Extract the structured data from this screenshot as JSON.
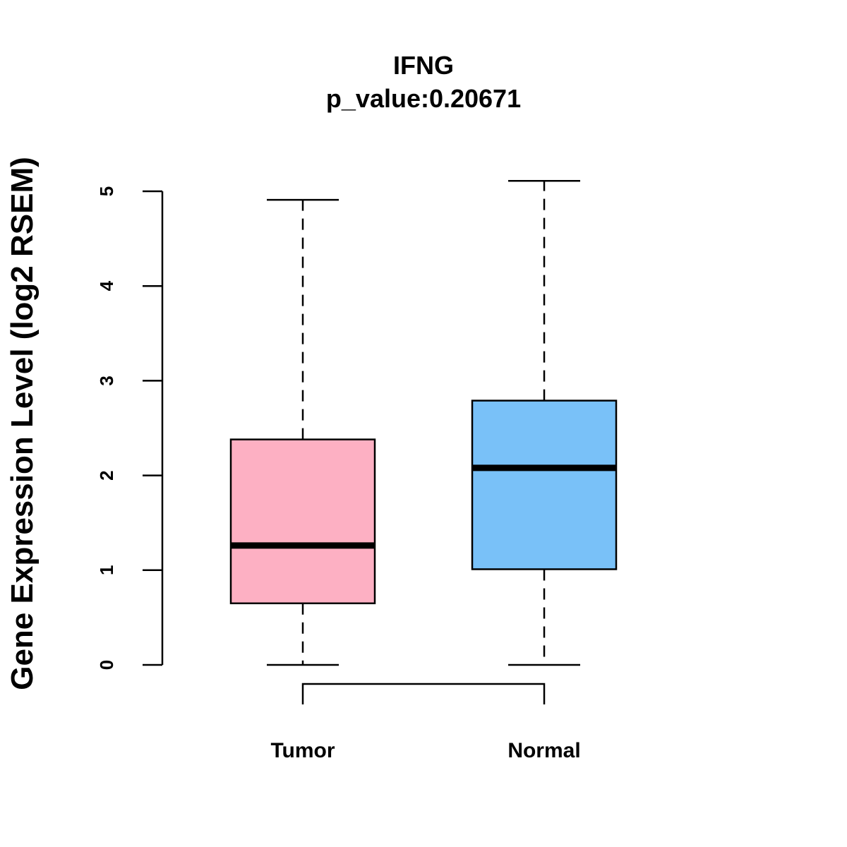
{
  "chart_data": {
    "type": "box",
    "title": "IFNG",
    "subtitle": "p_value:0.20671",
    "ylabel": "Gene Expression Level (log2 RSEM)",
    "ylim": [
      0,
      5
    ],
    "yticks": [
      "0",
      "1",
      "2",
      "3",
      "4",
      "5"
    ],
    "categories": [
      "Tumor",
      "Normal"
    ],
    "boxes": [
      {
        "name": "Tumor",
        "min": 0.0,
        "q1": 0.65,
        "median": 1.26,
        "q3": 2.38,
        "max": 4.91,
        "color": "#FDB0C3"
      },
      {
        "name": "Normal",
        "min": 0.0,
        "q1": 1.01,
        "median": 2.08,
        "q3": 2.79,
        "max": 5.11,
        "color": "#79C1F8"
      }
    ],
    "grid": false
  }
}
